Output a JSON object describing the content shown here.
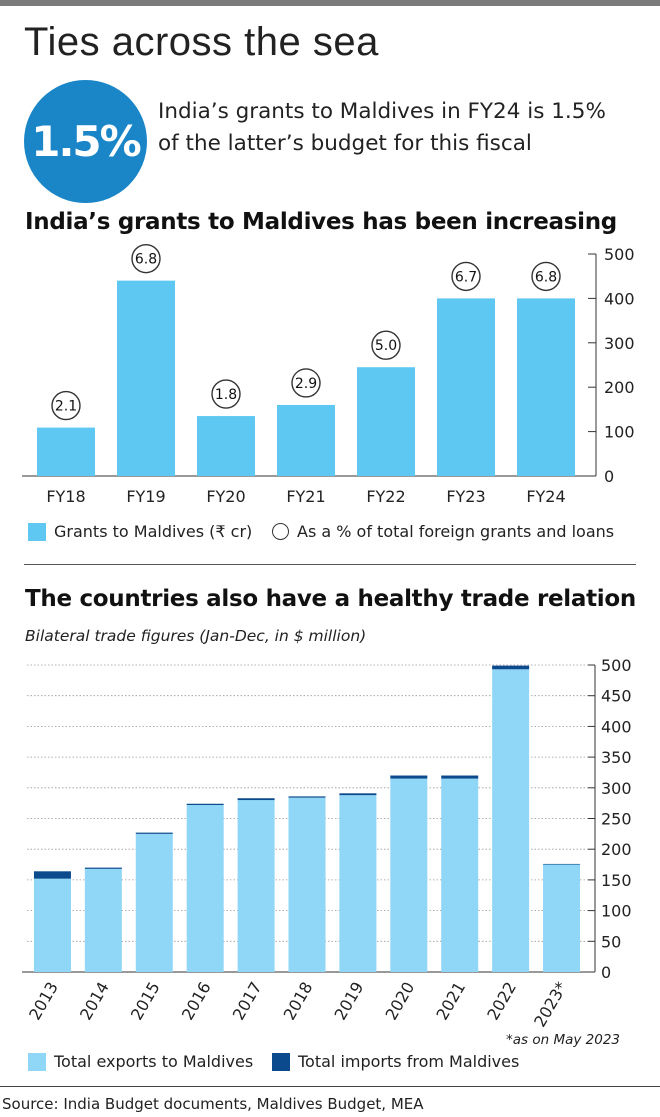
{
  "title": "Ties across the sea",
  "highlight": {
    "value": "1.5%",
    "text": "India’s grants to Maldives in FY24 is 1.5% of the latter’s budget for this fiscal"
  },
  "colors": {
    "circle": "#1a86c8",
    "grants_bar": "#5ec8f2",
    "exports_bar": "#8fd6f7",
    "imports_bar": "#0b4a8c"
  },
  "chart_data": [
    {
      "type": "bar",
      "title": "India’s grants to Maldives has been increasing",
      "categories": [
        "FY18",
        "FY19",
        "FY20",
        "FY21",
        "FY22",
        "FY23",
        "FY24"
      ],
      "series": [
        {
          "name": "Grants to Maldives (₹ cr)",
          "values": [
            109,
            440,
            135,
            160,
            245,
            400,
            400
          ]
        },
        {
          "name": "As a % of total foreign grants and loans",
          "values": [
            "2.1",
            "6.8",
            "1.8",
            "2.9",
            "5.0",
            "6.7",
            "6.8"
          ]
        }
      ],
      "ylim": [
        0,
        500
      ],
      "yticks": [
        0,
        100,
        200,
        300,
        400,
        500
      ],
      "grid": false,
      "legend": "bottom"
    },
    {
      "type": "bar",
      "stacked": true,
      "title": "The countries also have a healthy trade relation",
      "subtitle": "Bilateral trade figures (Jan-Dec, in $ million)",
      "categories": [
        "2013",
        "2014",
        "2015",
        "2016",
        "2017",
        "2018",
        "2019",
        "2020",
        "2021",
        "2022",
        "2023*"
      ],
      "series": [
        {
          "name": "Total exports to Maldives",
          "values": [
            152,
            168,
            225,
            272,
            280,
            284,
            288,
            315,
            315,
            493,
            175
          ]
        },
        {
          "name": "Total imports from Maldives",
          "values": [
            12,
            2,
            2,
            2,
            3,
            2,
            3,
            5,
            5,
            6,
            1
          ]
        }
      ],
      "ylim": [
        0,
        500
      ],
      "yticks": [
        0,
        50,
        100,
        150,
        200,
        250,
        300,
        350,
        400,
        450,
        500
      ],
      "grid": true,
      "legend": "bottom",
      "footnote": "*as on May 2023"
    }
  ],
  "source": "Source: India Budget documents, Maldives Budget, MEA"
}
